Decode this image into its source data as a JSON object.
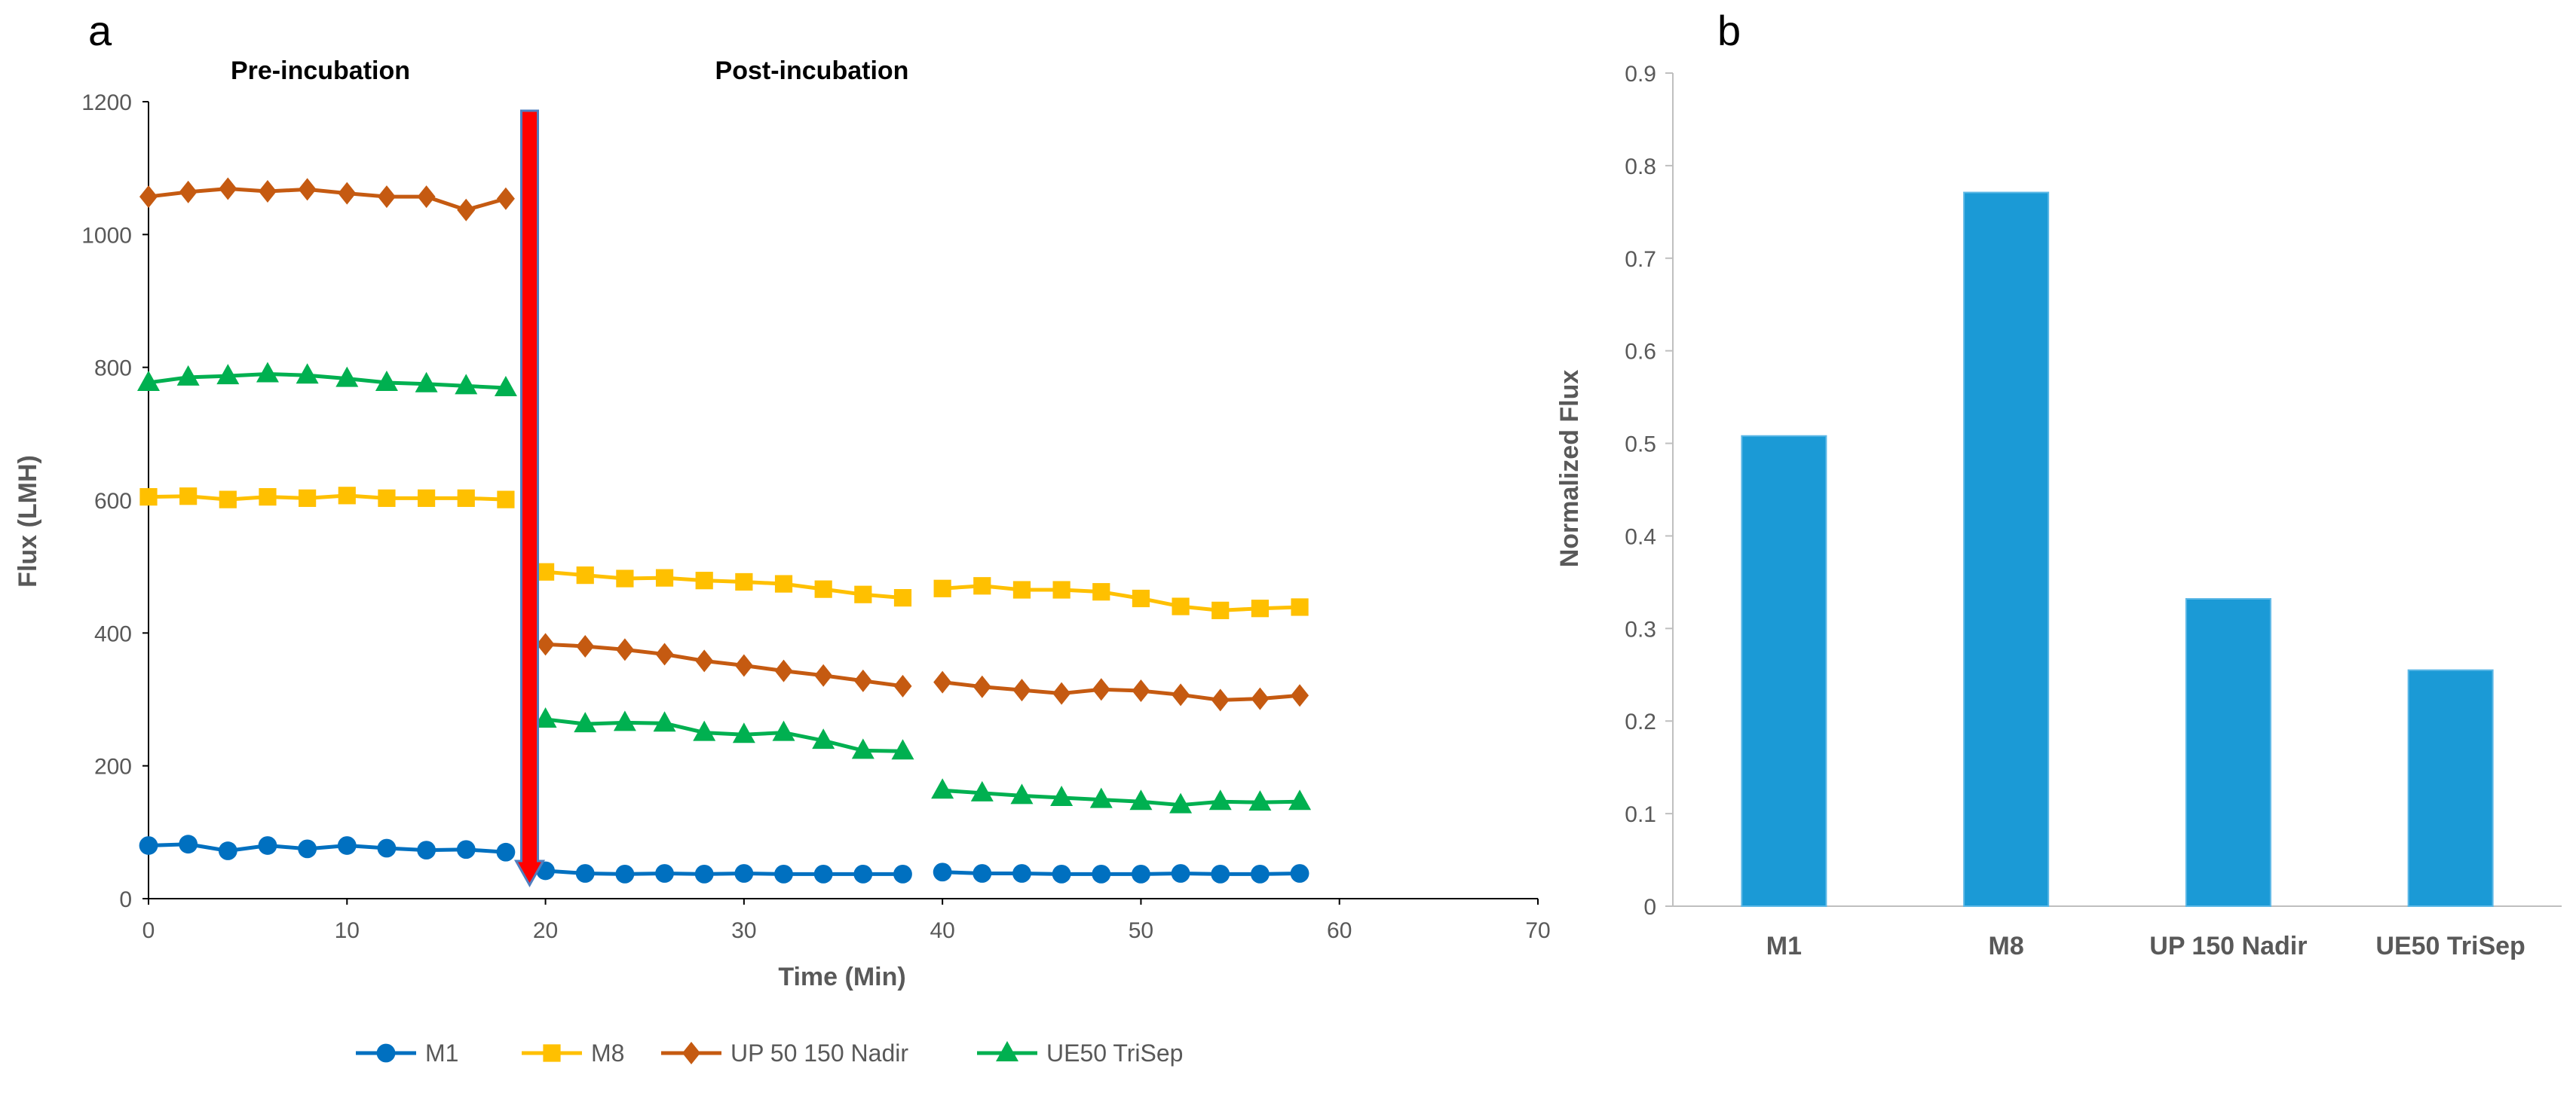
{
  "chart_data": [
    {
      "panel": "a",
      "type": "line",
      "xlabel": "Time (Min)",
      "ylabel": "Flux (LMH)",
      "xlim": [
        0,
        70
      ],
      "ylim": [
        0,
        1200
      ],
      "xticks": [
        0,
        10,
        20,
        30,
        40,
        50,
        60,
        70
      ],
      "yticks": [
        0,
        200,
        400,
        600,
        800,
        1000,
        1200
      ],
      "annotations": {
        "pre": "Pre-incubation",
        "post": "Post-incubation"
      },
      "arrow_x": 19.2,
      "legend_position": "bottom",
      "series": [
        {
          "name": "M1",
          "color": "#0070C0",
          "marker": "circle",
          "segments": [
            {
              "x": [
                0,
                2,
                4,
                6,
                8,
                10,
                12,
                14,
                16,
                18
              ],
              "y": [
                80,
                82,
                72,
                80,
                75,
                80,
                76,
                73,
                74,
                70
              ]
            },
            {
              "x": [
                20,
                22,
                24,
                26,
                28,
                30,
                32,
                34,
                36,
                38
              ],
              "y": [
                42,
                38,
                37,
                38,
                37,
                38,
                37,
                37,
                37,
                37
              ]
            },
            {
              "x": [
                40,
                42,
                44,
                46,
                48,
                50,
                52,
                54,
                56,
                58
              ],
              "y": [
                40,
                38,
                38,
                37,
                37,
                37,
                38,
                37,
                37,
                38
              ]
            }
          ]
        },
        {
          "name": "M8",
          "color": "#FFC000",
          "marker": "square",
          "segments": [
            {
              "x": [
                0,
                2,
                4,
                6,
                8,
                10,
                12,
                14,
                16,
                18
              ],
              "y": [
                605,
                606,
                601,
                605,
                603,
                607,
                603,
                603,
                603,
                601
              ]
            },
            {
              "x": [
                20,
                22,
                24,
                26,
                28,
                30,
                32,
                34,
                36,
                38
              ],
              "y": [
                492,
                487,
                482,
                483,
                479,
                477,
                474,
                466,
                458,
                453
              ]
            },
            {
              "x": [
                40,
                42,
                44,
                46,
                48,
                50,
                52,
                54,
                56,
                58
              ],
              "y": [
                467,
                471,
                465,
                465,
                462,
                452,
                440,
                434,
                437,
                439
              ]
            }
          ]
        },
        {
          "name": "UP 50 150 Nadir",
          "color": "#C55A11",
          "marker": "diamond",
          "segments": [
            {
              "x": [
                0,
                2,
                4,
                6,
                8,
                10,
                12,
                14,
                16,
                18
              ],
              "y": [
                1057,
                1064,
                1069,
                1065,
                1068,
                1062,
                1057,
                1057,
                1037,
                1054
              ]
            },
            {
              "x": [
                20,
                22,
                24,
                26,
                28,
                30,
                32,
                34,
                36,
                38
              ],
              "y": [
                383,
                380,
                375,
                368,
                358,
                351,
                343,
                336,
                328,
                320
              ]
            },
            {
              "x": [
                40,
                42,
                44,
                46,
                48,
                50,
                52,
                54,
                56,
                58
              ],
              "y": [
                326,
                319,
                314,
                309,
                315,
                313,
                307,
                299,
                301,
                306
              ]
            }
          ]
        },
        {
          "name": "UE50 TriSep",
          "color": "#00B050",
          "marker": "triangle",
          "segments": [
            {
              "x": [
                0,
                2,
                4,
                6,
                8,
                10,
                12,
                14,
                16,
                18
              ],
              "y": [
                777,
                785,
                787,
                790,
                788,
                783,
                777,
                775,
                772,
                769
              ]
            },
            {
              "x": [
                20,
                22,
                24,
                26,
                28,
                30,
                32,
                34,
                36,
                38
              ],
              "y": [
                270,
                263,
                265,
                264,
                250,
                247,
                250,
                238,
                223,
                222
              ]
            },
            {
              "x": [
                40,
                42,
                44,
                46,
                48,
                50,
                52,
                54,
                56,
                58
              ],
              "y": [
                163,
                159,
                155,
                152,
                149,
                146,
                141,
                146,
                145,
                146
              ]
            }
          ]
        }
      ]
    },
    {
      "panel": "b",
      "type": "bar",
      "xlabel": "",
      "ylabel": "Normalized Flux",
      "ylim": [
        0,
        0.9
      ],
      "yticks": [
        "0",
        "0.1",
        "0.2",
        "0.3",
        "0.4",
        "0.5",
        "0.6",
        "0.7",
        "0.8",
        "0.9"
      ],
      "categories": [
        "M1",
        "M8",
        "UP 150 Nadir",
        "UE50 TriSep"
      ],
      "values": [
        0.508,
        0.771,
        0.332,
        0.255
      ],
      "color": "#1B9AD6"
    }
  ]
}
